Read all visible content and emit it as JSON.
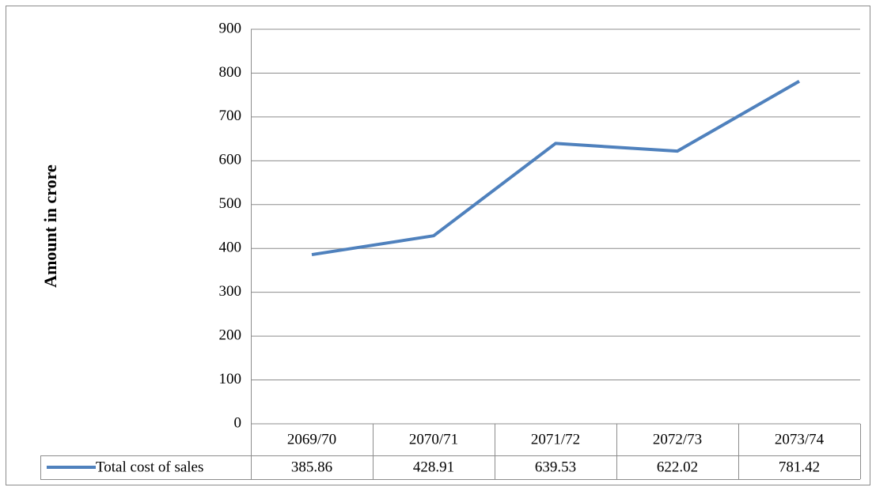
{
  "chart_data": {
    "type": "line",
    "y_label": "Amount in crore",
    "categories": [
      "2069/70",
      "2070/71",
      "2071/72",
      "2072/73",
      "2073/74"
    ],
    "series": [
      {
        "name": "Total cost of sales",
        "color": "#4f81bd",
        "values": [
          385.86,
          428.91,
          639.53,
          622.02,
          781.42
        ]
      }
    ],
    "ylim": [
      0,
      900
    ],
    "yticks": [
      0,
      100,
      200,
      300,
      400,
      500,
      600,
      700,
      800,
      900
    ],
    "grid": true,
    "data_table": true
  }
}
